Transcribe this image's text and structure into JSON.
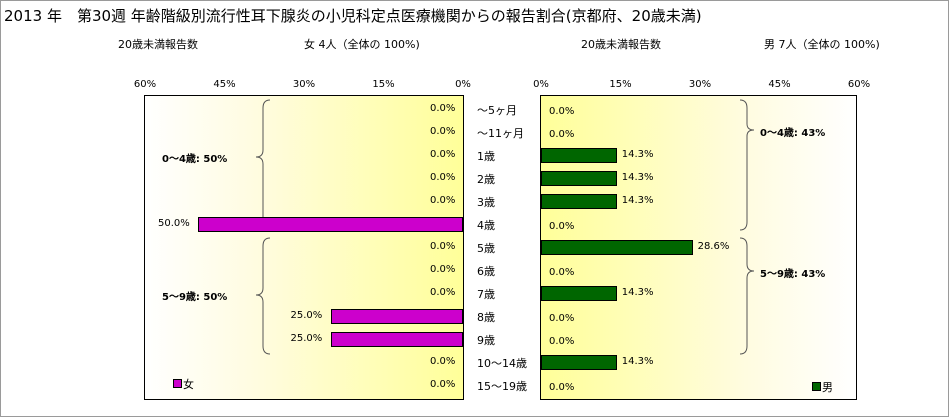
{
  "title": "2013 年　第30週 年齢階級別流行性耳下腺炎の小児科定点医療機関からの報告割合(京都府、20歳未満)",
  "female_panel": {
    "header_left": "20歳未満報告数",
    "header_right": "女 4人（全体の 100%)",
    "group_labels": [
      "0～4歳: 50%",
      "5～9歳: 50%"
    ],
    "legend": "女"
  },
  "male_panel": {
    "header_left": "20歳未満報告数",
    "header_right": "男 7人（全体の 100%)",
    "group_labels": [
      "0～4歳: 43%",
      "5～9歳: 43%"
    ],
    "legend": "男"
  },
  "colors": {
    "female": "#cc00cc",
    "male": "#006600"
  },
  "chart_data": {
    "type": "bar",
    "orientation": "horizontal",
    "categories": [
      "～5ヶ月",
      "～11ヶ月",
      "1歳",
      "2歳",
      "3歳",
      "4歳",
      "5歳",
      "6歳",
      "7歳",
      "8歳",
      "9歳",
      "10～14歳",
      "15～19歳"
    ],
    "series": [
      {
        "name": "女",
        "values": [
          0,
          0,
          0,
          0,
          0,
          50,
          0,
          0,
          0,
          25,
          25,
          0,
          0
        ],
        "labels": [
          "0.0%",
          "0.0%",
          "0.0%",
          "0.0%",
          "0.0%",
          "50.0%",
          "0.0%",
          "0.0%",
          "0.0%",
          "25.0%",
          "25.0%",
          "0.0%",
          "0.0%"
        ]
      },
      {
        "name": "男",
        "values": [
          0,
          0,
          14.3,
          14.3,
          14.3,
          0,
          28.6,
          0,
          14.3,
          0,
          0,
          14.3,
          0
        ],
        "labels": [
          "0.0%",
          "0.0%",
          "14.3%",
          "14.3%",
          "14.3%",
          "0.0%",
          "28.6%",
          "0.0%",
          "14.3%",
          "0.0%",
          "0.0%",
          "14.3%",
          "0.0%"
        ]
      }
    ],
    "female_ticks": [
      "60%",
      "45%",
      "30%",
      "15%",
      "0%"
    ],
    "male_ticks": [
      "0%",
      "15%",
      "30%",
      "45%",
      "60%"
    ],
    "xlim": [
      0,
      60
    ]
  }
}
